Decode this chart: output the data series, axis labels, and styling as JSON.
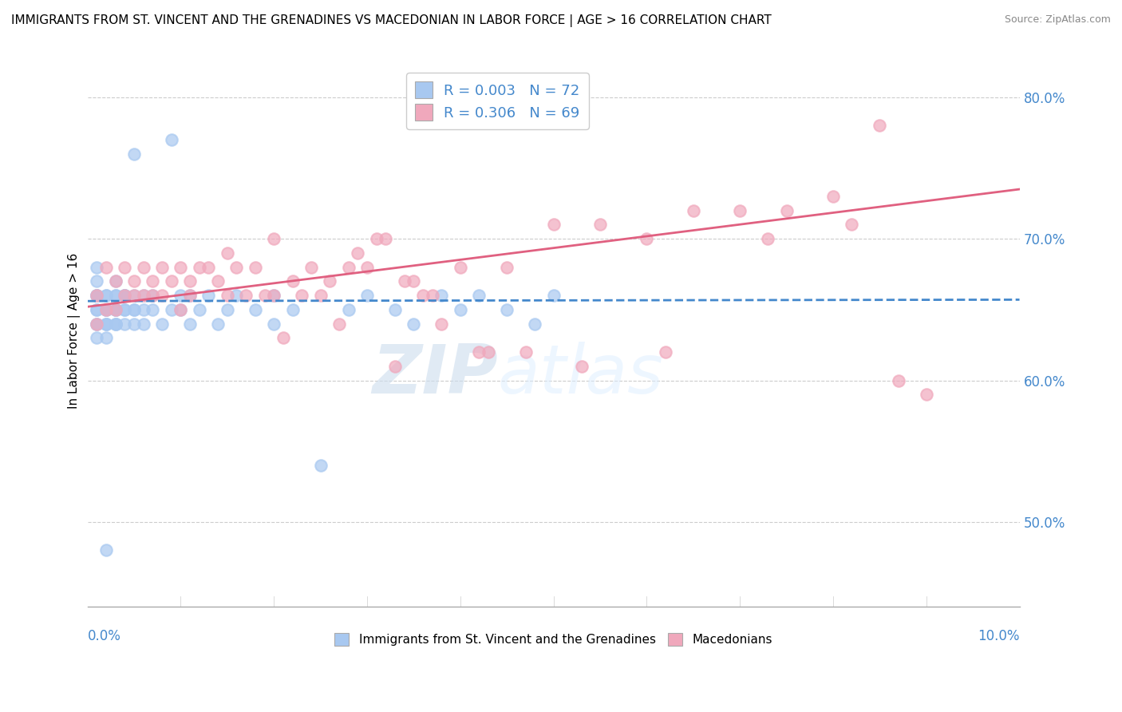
{
  "title": "IMMIGRANTS FROM ST. VINCENT AND THE GRENADINES VS MACEDONIAN IN LABOR FORCE | AGE > 16 CORRELATION CHART",
  "source": "Source: ZipAtlas.com",
  "ylabel": "In Labor Force | Age > 16",
  "y_tick_labels": [
    "50.0%",
    "60.0%",
    "70.0%",
    "80.0%"
  ],
  "y_tick_values": [
    0.5,
    0.6,
    0.7,
    0.8
  ],
  "xmin": 0.0,
  "xmax": 0.1,
  "ymin": 0.44,
  "ymax": 0.83,
  "blue_R": "0.003",
  "blue_N": "72",
  "pink_R": "0.306",
  "pink_N": "69",
  "blue_color": "#a8c8f0",
  "pink_color": "#f0a8bc",
  "blue_trend_color": "#4488cc",
  "pink_trend_color": "#e06080",
  "legend_label_blue": "Immigrants from St. Vincent and the Grenadines",
  "legend_label_pink": "Macedonians",
  "watermark_zip": "ZIP",
  "watermark_atlas": "atlas",
  "blue_trend_x": [
    0.0,
    0.1
  ],
  "blue_trend_y": [
    0.656,
    0.657
  ],
  "pink_trend_x": [
    0.0,
    0.1
  ],
  "pink_trend_y": [
    0.652,
    0.735
  ],
  "blue_scatter_x": [
    0.001,
    0.001,
    0.001,
    0.001,
    0.001,
    0.001,
    0.001,
    0.001,
    0.001,
    0.001,
    0.002,
    0.002,
    0.002,
    0.002,
    0.002,
    0.002,
    0.002,
    0.002,
    0.002,
    0.002,
    0.003,
    0.003,
    0.003,
    0.003,
    0.003,
    0.003,
    0.003,
    0.003,
    0.003,
    0.004,
    0.004,
    0.004,
    0.004,
    0.004,
    0.004,
    0.005,
    0.005,
    0.005,
    0.005,
    0.005,
    0.006,
    0.006,
    0.006,
    0.007,
    0.007,
    0.008,
    0.009,
    0.009,
    0.01,
    0.01,
    0.011,
    0.011,
    0.012,
    0.013,
    0.014,
    0.015,
    0.016,
    0.018,
    0.02,
    0.02,
    0.022,
    0.025,
    0.028,
    0.03,
    0.033,
    0.035,
    0.038,
    0.04,
    0.042,
    0.045,
    0.048,
    0.05
  ],
  "blue_scatter_y": [
    0.66,
    0.64,
    0.68,
    0.65,
    0.63,
    0.66,
    0.64,
    0.65,
    0.67,
    0.66,
    0.65,
    0.63,
    0.64,
    0.66,
    0.65,
    0.64,
    0.66,
    0.65,
    0.64,
    0.48,
    0.66,
    0.65,
    0.64,
    0.67,
    0.65,
    0.64,
    0.66,
    0.65,
    0.64,
    0.66,
    0.65,
    0.64,
    0.66,
    0.65,
    0.66,
    0.66,
    0.65,
    0.64,
    0.76,
    0.65,
    0.65,
    0.64,
    0.66,
    0.66,
    0.65,
    0.64,
    0.77,
    0.65,
    0.66,
    0.65,
    0.64,
    0.66,
    0.65,
    0.66,
    0.64,
    0.65,
    0.66,
    0.65,
    0.64,
    0.66,
    0.65,
    0.54,
    0.65,
    0.66,
    0.65,
    0.64,
    0.66,
    0.65,
    0.66,
    0.65,
    0.64,
    0.66
  ],
  "pink_scatter_x": [
    0.001,
    0.001,
    0.002,
    0.002,
    0.003,
    0.003,
    0.004,
    0.004,
    0.005,
    0.005,
    0.006,
    0.006,
    0.007,
    0.007,
    0.008,
    0.008,
    0.009,
    0.01,
    0.01,
    0.011,
    0.011,
    0.012,
    0.013,
    0.014,
    0.015,
    0.015,
    0.016,
    0.017,
    0.018,
    0.019,
    0.02,
    0.02,
    0.021,
    0.022,
    0.023,
    0.024,
    0.025,
    0.026,
    0.027,
    0.028,
    0.029,
    0.03,
    0.031,
    0.032,
    0.033,
    0.034,
    0.035,
    0.036,
    0.037,
    0.038,
    0.04,
    0.042,
    0.043,
    0.045,
    0.047,
    0.05,
    0.053,
    0.055,
    0.06,
    0.062,
    0.065,
    0.07,
    0.073,
    0.075,
    0.08,
    0.082,
    0.085,
    0.087,
    0.09
  ],
  "pink_scatter_y": [
    0.66,
    0.64,
    0.68,
    0.65,
    0.67,
    0.65,
    0.66,
    0.68,
    0.66,
    0.67,
    0.68,
    0.66,
    0.67,
    0.66,
    0.68,
    0.66,
    0.67,
    0.68,
    0.65,
    0.67,
    0.66,
    0.68,
    0.68,
    0.67,
    0.69,
    0.66,
    0.68,
    0.66,
    0.68,
    0.66,
    0.7,
    0.66,
    0.63,
    0.67,
    0.66,
    0.68,
    0.66,
    0.67,
    0.64,
    0.68,
    0.69,
    0.68,
    0.7,
    0.7,
    0.61,
    0.67,
    0.67,
    0.66,
    0.66,
    0.64,
    0.68,
    0.62,
    0.62,
    0.68,
    0.62,
    0.71,
    0.61,
    0.71,
    0.7,
    0.62,
    0.72,
    0.72,
    0.7,
    0.72,
    0.73,
    0.71,
    0.78,
    0.6,
    0.59
  ]
}
